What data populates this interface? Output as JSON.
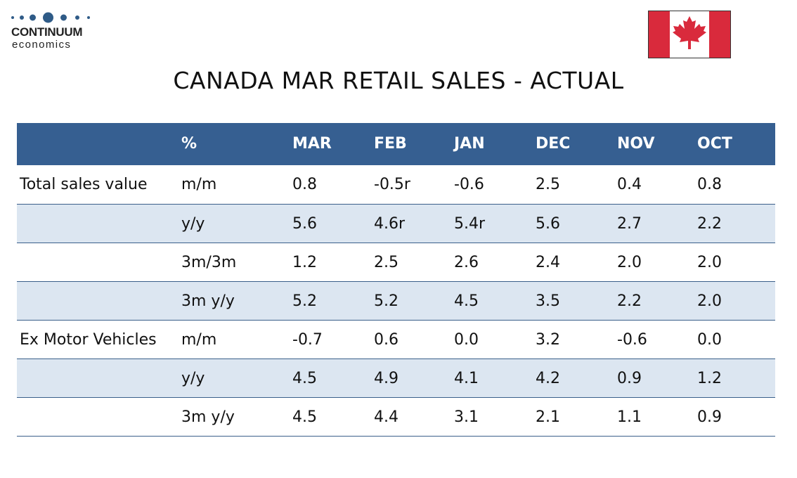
{
  "logo": {
    "line1": "CONTINUUM",
    "line2": "economics"
  },
  "title": "CANADA MAR RETAIL SALES - ACTUAL",
  "colors": {
    "header_bg": "#365f91",
    "alt_row": "#dce6f1",
    "flag_red": "#d92a3c"
  },
  "table": {
    "headers": [
      "",
      "%",
      "MAR",
      "FEB",
      "JAN",
      "DEC",
      "NOV",
      "OCT"
    ],
    "rows": [
      [
        "Total sales value",
        "m/m",
        "0.8",
        "-0.5r",
        "-0.6",
        "2.5",
        "0.4",
        "0.8"
      ],
      [
        "",
        "y/y",
        "5.6",
        "4.6r",
        "5.4r",
        "5.6",
        "2.7",
        "2.2"
      ],
      [
        "",
        "3m/3m",
        "1.2",
        "2.5",
        "2.6",
        "2.4",
        "2.0",
        "2.0"
      ],
      [
        "",
        "3m y/y",
        "5.2",
        "5.2",
        "4.5",
        "3.5",
        "2.2",
        "2.0"
      ],
      [
        "Ex Motor Vehicles",
        "m/m",
        "-0.7",
        "0.6",
        "0.0",
        "3.2",
        "-0.6",
        "0.0"
      ],
      [
        "",
        "y/y",
        "4.5",
        "4.9",
        "4.1",
        "4.2",
        "0.9",
        "1.2"
      ],
      [
        "",
        "3m y/y",
        "4.5",
        "4.4",
        "3.1",
        "2.1",
        "1.1",
        "0.9"
      ]
    ]
  }
}
